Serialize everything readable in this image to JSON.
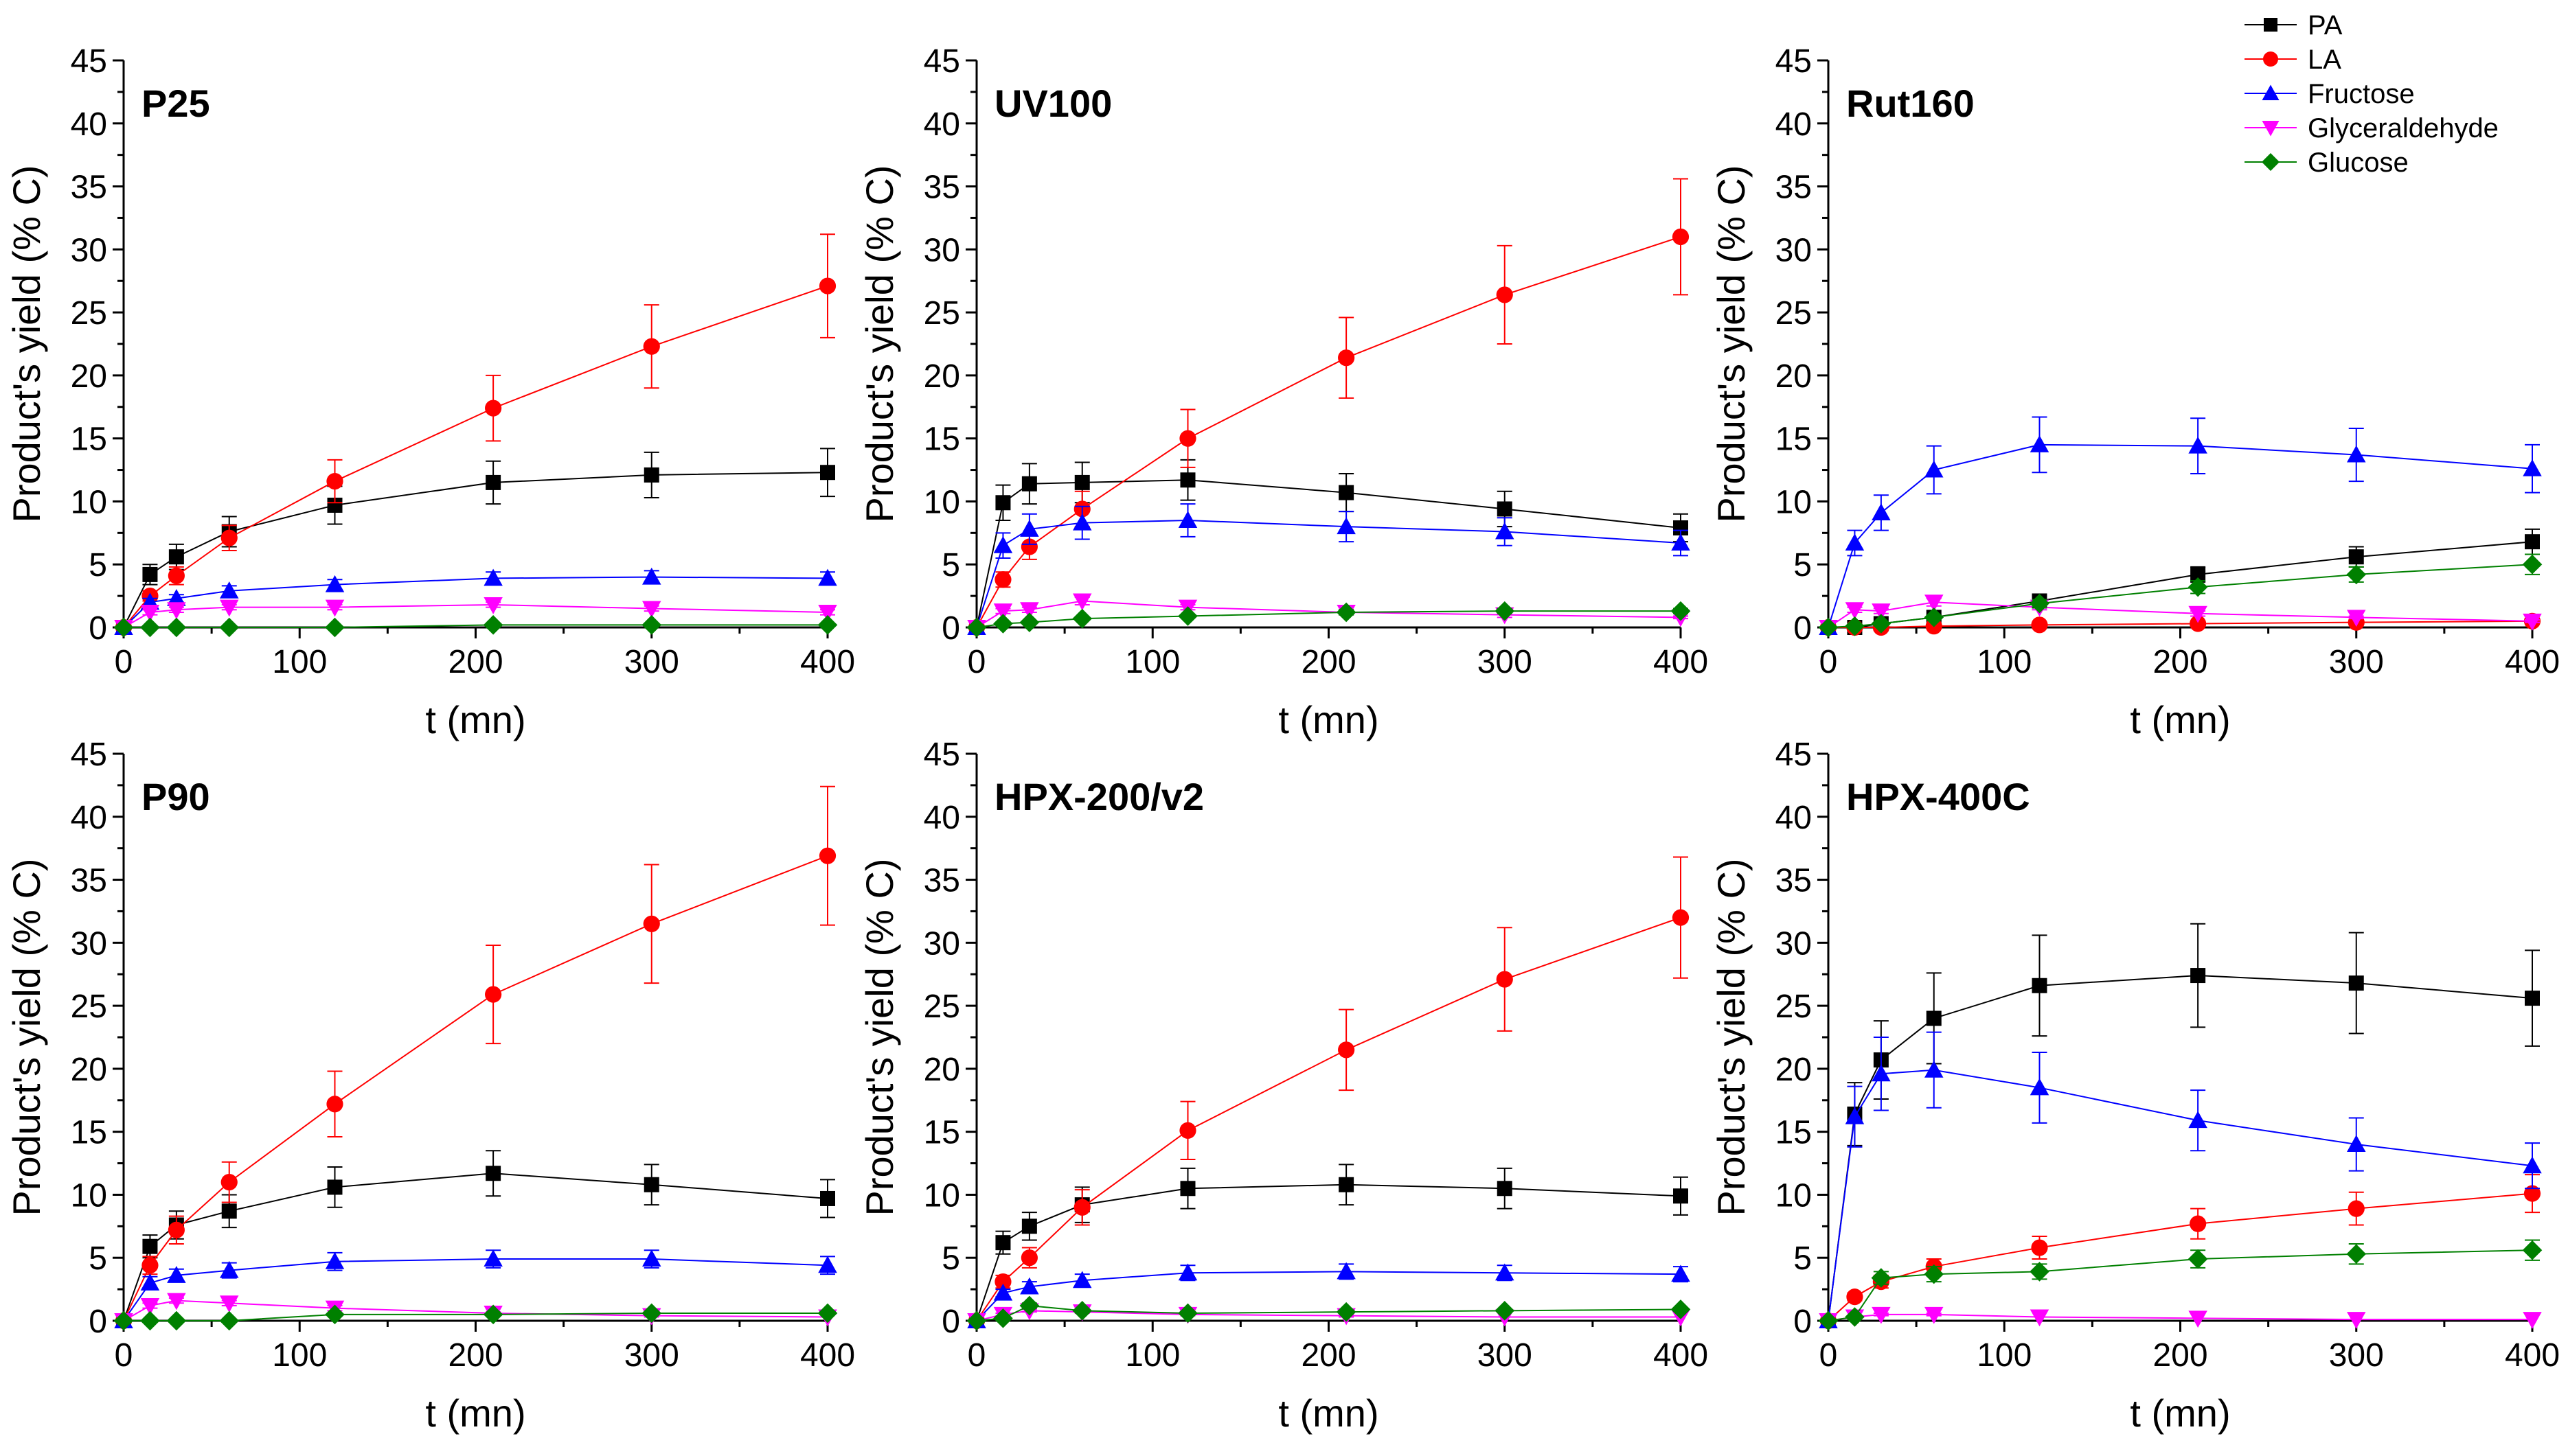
{
  "legend": [
    {
      "name": "PA",
      "color": "#000000",
      "marker": "square"
    },
    {
      "name": "LA",
      "color": "#ff0000",
      "marker": "circle"
    },
    {
      "name": "Fructose",
      "color": "#0000ff",
      "marker": "triangle-up"
    },
    {
      "name": "Glyceraldehyde",
      "color": "#ff00ff",
      "marker": "triangle-down"
    },
    {
      "name": "Glucose",
      "color": "#008000",
      "marker": "diamond"
    }
  ],
  "chart_data": [
    {
      "type": "line",
      "title": "P25",
      "xlabel": "t (mn)",
      "ylabel": "Product's yield (% C)",
      "xlim": [
        0,
        400
      ],
      "ylim": [
        0,
        45
      ],
      "xticks": [
        0,
        100,
        200,
        300,
        400
      ],
      "yticks": [
        0,
        5,
        10,
        15,
        20,
        25,
        30,
        35,
        40,
        45
      ],
      "x": [
        0,
        15,
        30,
        60,
        120,
        210,
        300,
        400
      ],
      "series": [
        {
          "name": "PA",
          "values": [
            0,
            4.2,
            5.6,
            7.6,
            9.7,
            11.5,
            12.1,
            12.3
          ],
          "errors": [
            0,
            0.8,
            1.0,
            1.2,
            1.5,
            1.7,
            1.8,
            1.9
          ]
        },
        {
          "name": "LA",
          "values": [
            0,
            2.5,
            4.1,
            7.1,
            11.6,
            17.4,
            22.3,
            27.1
          ],
          "errors": [
            0,
            0.4,
            0.7,
            1.0,
            1.7,
            2.6,
            3.3,
            4.1
          ]
        },
        {
          "name": "Fructose",
          "values": [
            0,
            2.0,
            2.3,
            2.9,
            3.4,
            3.9,
            4.0,
            3.9
          ],
          "errors": [
            0,
            0.3,
            0.3,
            0.4,
            0.4,
            0.5,
            0.5,
            0.5
          ]
        },
        {
          "name": "Glyceraldehyde",
          "values": [
            0,
            1.2,
            1.4,
            1.6,
            1.6,
            1.8,
            1.5,
            1.2
          ],
          "errors": [
            0,
            0.2,
            0.2,
            0.2,
            0.2,
            0.2,
            0.2,
            0.2
          ]
        },
        {
          "name": "Glucose",
          "values": [
            0,
            0,
            0,
            0,
            0,
            0.2,
            0.2,
            0.2
          ],
          "errors": [
            0,
            0,
            0,
            0,
            0,
            0,
            0,
            0
          ]
        }
      ]
    },
    {
      "type": "line",
      "title": "UV100",
      "xlabel": "t (mn)",
      "ylabel": "Product's yield (% C)",
      "xlim": [
        0,
        400
      ],
      "ylim": [
        0,
        45
      ],
      "xticks": [
        0,
        100,
        200,
        300,
        400
      ],
      "yticks": [
        0,
        5,
        10,
        15,
        20,
        25,
        30,
        35,
        40,
        45
      ],
      "x": [
        0,
        15,
        30,
        60,
        120,
        210,
        300,
        400
      ],
      "series": [
        {
          "name": "PA",
          "values": [
            0,
            9.9,
            11.4,
            11.5,
            11.7,
            10.7,
            9.4,
            7.9
          ],
          "errors": [
            0,
            1.4,
            1.6,
            1.6,
            1.6,
            1.5,
            1.4,
            1.1
          ]
        },
        {
          "name": "LA",
          "values": [
            0,
            3.8,
            6.4,
            9.4,
            15.0,
            21.4,
            26.4,
            31.0
          ],
          "errors": [
            0,
            0.6,
            1.0,
            1.4,
            2.3,
            3.2,
            3.9,
            4.6
          ]
        },
        {
          "name": "Fructose",
          "values": [
            0,
            6.5,
            7.8,
            8.3,
            8.5,
            8.0,
            7.6,
            6.7
          ],
          "errors": [
            0,
            1.0,
            1.2,
            1.3,
            1.3,
            1.2,
            1.1,
            1.0
          ]
        },
        {
          "name": "Glyceraldehyde",
          "values": [
            0,
            1.3,
            1.4,
            2.1,
            1.6,
            1.2,
            1.0,
            0.8
          ],
          "errors": [
            0,
            0.2,
            0.2,
            0.3,
            0.2,
            0.2,
            0.2,
            0.1
          ]
        },
        {
          "name": "Glucose",
          "values": [
            0,
            0.3,
            0.4,
            0.7,
            0.9,
            1.2,
            1.3,
            1.3
          ],
          "errors": [
            0,
            0,
            0,
            0.1,
            0.1,
            0.2,
            0.2,
            0.2
          ]
        }
      ]
    },
    {
      "type": "line",
      "title": "Rut160",
      "xlabel": "t (mn)",
      "ylabel": "Product's yield (% C)",
      "xlim": [
        0,
        400
      ],
      "ylim": [
        0,
        45
      ],
      "xticks": [
        0,
        100,
        200,
        300,
        400
      ],
      "yticks": [
        0,
        5,
        10,
        15,
        20,
        25,
        30,
        35,
        40,
        45
      ],
      "x": [
        0,
        15,
        30,
        60,
        120,
        210,
        300,
        400
      ],
      "series": [
        {
          "name": "PA",
          "values": [
            0,
            0,
            0.3,
            0.8,
            2.1,
            4.2,
            5.6,
            6.8
          ],
          "errors": [
            0,
            0,
            0.1,
            0.2,
            0.4,
            0.6,
            0.8,
            1.0
          ]
        },
        {
          "name": "LA",
          "values": [
            0,
            0,
            0,
            0.1,
            0.2,
            0.3,
            0.4,
            0.5
          ],
          "errors": [
            0,
            0,
            0,
            0,
            0,
            0,
            0,
            0
          ]
        },
        {
          "name": "Fructose",
          "values": [
            0,
            6.7,
            9.1,
            12.5,
            14.5,
            14.4,
            13.7,
            12.6
          ],
          "errors": [
            0,
            1.0,
            1.4,
            1.9,
            2.2,
            2.2,
            2.1,
            1.9
          ]
        },
        {
          "name": "Glyceraldehyde",
          "values": [
            0,
            1.4,
            1.3,
            2.0,
            1.6,
            1.1,
            0.8,
            0.5
          ],
          "errors": [
            0,
            0.2,
            0.2,
            0.3,
            0.2,
            0.2,
            0.1,
            0.1
          ]
        },
        {
          "name": "Glucose",
          "values": [
            0,
            0.1,
            0.3,
            0.8,
            1.9,
            3.2,
            4.2,
            5.0
          ],
          "errors": [
            0,
            0,
            0.1,
            0.1,
            0.3,
            0.5,
            0.6,
            0.8
          ]
        }
      ]
    },
    {
      "type": "line",
      "title": "P90",
      "xlabel": "t (mn)",
      "ylabel": "Product's yield (% C)",
      "xlim": [
        0,
        400
      ],
      "ylim": [
        0,
        45
      ],
      "xticks": [
        0,
        100,
        200,
        300,
        400
      ],
      "yticks": [
        0,
        5,
        10,
        15,
        20,
        25,
        30,
        35,
        40,
        45
      ],
      "x": [
        0,
        15,
        30,
        60,
        120,
        210,
        300,
        400
      ],
      "series": [
        {
          "name": "PA",
          "values": [
            0,
            5.9,
            7.6,
            8.7,
            10.6,
            11.7,
            10.8,
            9.7
          ],
          "errors": [
            0,
            0.9,
            1.1,
            1.3,
            1.6,
            1.8,
            1.6,
            1.5
          ]
        },
        {
          "name": "LA",
          "values": [
            0,
            4.4,
            7.2,
            11.0,
            17.2,
            25.9,
            31.5,
            36.9
          ],
          "errors": [
            0,
            0.7,
            1.1,
            1.6,
            2.6,
            3.9,
            4.7,
            5.5
          ]
        },
        {
          "name": "Fructose",
          "values": [
            0,
            3.0,
            3.6,
            4.0,
            4.7,
            4.9,
            4.9,
            4.4
          ],
          "errors": [
            0,
            0.5,
            0.5,
            0.6,
            0.7,
            0.7,
            0.7,
            0.7
          ]
        },
        {
          "name": "Glyceraldehyde",
          "values": [
            0,
            1.2,
            1.6,
            1.4,
            1.0,
            0.6,
            0.4,
            0.3
          ],
          "errors": [
            0,
            0.2,
            0.2,
            0.2,
            0.2,
            0.1,
            0.1,
            0
          ]
        },
        {
          "name": "Glucose",
          "values": [
            0,
            0,
            0,
            0,
            0.5,
            0.5,
            0.6,
            0.6
          ],
          "errors": [
            0,
            0,
            0,
            0,
            0.1,
            0.1,
            0.1,
            0.1
          ]
        }
      ]
    },
    {
      "type": "line",
      "title": "HPX-200/v2",
      "xlabel": "t (mn)",
      "ylabel": "Product's yield (% C)",
      "xlim": [
        0,
        400
      ],
      "ylim": [
        0,
        45
      ],
      "xticks": [
        0,
        100,
        200,
        300,
        400
      ],
      "yticks": [
        0,
        5,
        10,
        15,
        20,
        25,
        30,
        35,
        40,
        45
      ],
      "x": [
        0,
        15,
        30,
        60,
        120,
        210,
        300,
        400
      ],
      "series": [
        {
          "name": "PA",
          "values": [
            0,
            6.2,
            7.5,
            9.2,
            10.5,
            10.8,
            10.5,
            9.9
          ],
          "errors": [
            0,
            0.9,
            1.1,
            1.4,
            1.6,
            1.6,
            1.6,
            1.5
          ]
        },
        {
          "name": "LA",
          "values": [
            0,
            3.1,
            5.0,
            9.0,
            15.1,
            21.5,
            27.1,
            32.0
          ],
          "errors": [
            0,
            0.5,
            0.8,
            1.4,
            2.3,
            3.2,
            4.1,
            4.8
          ]
        },
        {
          "name": "Fructose",
          "values": [
            0,
            2.2,
            2.7,
            3.2,
            3.8,
            3.9,
            3.8,
            3.7
          ],
          "errors": [
            0,
            0.3,
            0.4,
            0.5,
            0.6,
            0.6,
            0.6,
            0.6
          ]
        },
        {
          "name": "Glyceraldehyde",
          "values": [
            0,
            0.5,
            0.8,
            0.7,
            0.5,
            0.4,
            0.3,
            0.3
          ],
          "errors": [
            0,
            0.1,
            0.1,
            0.1,
            0.1,
            0.1,
            0,
            0
          ]
        },
        {
          "name": "Glucose",
          "values": [
            0,
            0.2,
            1.2,
            0.8,
            0.6,
            0.7,
            0.8,
            0.9
          ],
          "errors": [
            0,
            0,
            0.2,
            0.1,
            0.1,
            0.1,
            0.1,
            0.1
          ]
        }
      ]
    },
    {
      "type": "line",
      "title": "HPX-400C",
      "xlabel": "t (mn)",
      "ylabel": "Product's yield (% C)",
      "xlim": [
        0,
        400
      ],
      "ylim": [
        0,
        45
      ],
      "xticks": [
        0,
        100,
        200,
        300,
        400
      ],
      "yticks": [
        0,
        5,
        10,
        15,
        20,
        25,
        30,
        35,
        40,
        45
      ],
      "x": [
        0,
        15,
        30,
        60,
        120,
        210,
        300,
        400
      ],
      "series": [
        {
          "name": "PA",
          "values": [
            0,
            16.4,
            20.7,
            24.0,
            26.6,
            27.4,
            26.8,
            25.6
          ],
          "errors": [
            0,
            2.5,
            3.1,
            3.6,
            4.0,
            4.1,
            4.0,
            3.8
          ]
        },
        {
          "name": "LA",
          "values": [
            0,
            1.9,
            3.1,
            4.3,
            5.8,
            7.7,
            8.9,
            10.1
          ],
          "errors": [
            0,
            0.3,
            0.5,
            0.6,
            0.9,
            1.2,
            1.3,
            1.5
          ]
        },
        {
          "name": "Fructose",
          "values": [
            0,
            16.2,
            19.6,
            19.9,
            18.5,
            15.9,
            14.0,
            12.3
          ],
          "errors": [
            0,
            2.4,
            2.9,
            3.0,
            2.8,
            2.4,
            2.1,
            1.8
          ]
        },
        {
          "name": "Glyceraldehyde",
          "values": [
            0,
            0.3,
            0.5,
            0.5,
            0.3,
            0.2,
            0.1,
            0.1
          ],
          "errors": [
            0,
            0,
            0.1,
            0.1,
            0,
            0,
            0,
            0
          ]
        },
        {
          "name": "Glucose",
          "values": [
            0,
            0.3,
            3.4,
            3.7,
            3.9,
            4.9,
            5.3,
            5.6
          ],
          "errors": [
            0,
            0,
            0.5,
            0.6,
            0.6,
            0.7,
            0.8,
            0.8
          ]
        }
      ]
    }
  ]
}
